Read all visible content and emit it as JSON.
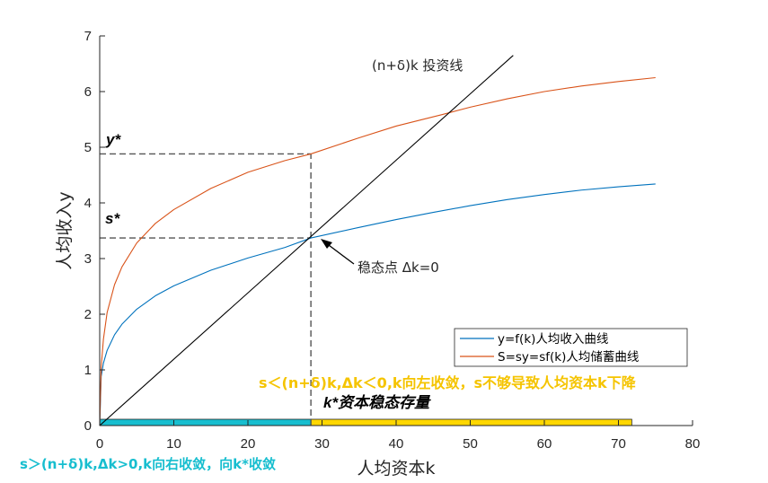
{
  "chart_data": {
    "type": "line",
    "xlabel": "人均资本k",
    "ylabel": "人均收入y",
    "xlim": [
      0,
      80
    ],
    "ylim": [
      0,
      7
    ],
    "xticks": [
      0,
      10,
      20,
      30,
      40,
      50,
      60,
      70,
      80
    ],
    "yticks": [
      0,
      1,
      2,
      3,
      4,
      5,
      6,
      7
    ],
    "grid": false,
    "legend_position": "lower-right",
    "series": [
      {
        "name": "y=f(k)人均收入曲线",
        "color": "#0072bd",
        "x": [
          0,
          0.2,
          0.5,
          1,
          2,
          3,
          5,
          7.5,
          10,
          15,
          20,
          25,
          28.5,
          35,
          40,
          45,
          50,
          55,
          60,
          65,
          70,
          75
        ],
        "y": [
          0,
          0.88,
          1.12,
          1.35,
          1.63,
          1.82,
          2.09,
          2.33,
          2.51,
          2.79,
          3.01,
          3.2,
          3.37,
          3.56,
          3.7,
          3.83,
          3.95,
          4.06,
          4.15,
          4.23,
          4.29,
          4.34
        ]
      },
      {
        "name": "S=sy=sf(k)人均储蓄曲线",
        "color": "#d95319",
        "x": [
          0,
          0.2,
          0.5,
          1,
          2,
          3,
          5,
          7.5,
          10,
          15,
          20,
          25,
          28.5,
          35,
          40,
          46.3,
          50,
          55,
          60,
          65,
          70,
          75
        ],
        "y": [
          0,
          1.05,
          1.55,
          2.03,
          2.53,
          2.85,
          3.28,
          3.63,
          3.88,
          4.26,
          4.55,
          4.76,
          4.88,
          5.17,
          5.38,
          5.59,
          5.72,
          5.87,
          6.0,
          6.1,
          6.18,
          6.25
        ]
      },
      {
        "name": "(n+δ)k 投资线",
        "color": "#000000",
        "x": [
          0,
          55.8
        ],
        "y": [
          0,
          6.65
        ]
      }
    ],
    "reference_lines": [
      {
        "kind": "horizontal",
        "y": 4.88,
        "x_from": 0,
        "x_to": 28.5,
        "style": "dashed"
      },
      {
        "kind": "horizontal",
        "y": 3.37,
        "x_from": 0,
        "x_to": 28.5,
        "style": "dashed"
      },
      {
        "kind": "vertical",
        "x": 28.5,
        "y_from": 0,
        "y_to": 4.88,
        "style": "dashed"
      }
    ],
    "bands": [
      {
        "x_from": 0,
        "x_to": 28.5,
        "color": "#17becf",
        "note": "s＞(n+δ)k,Δk>0,k向右收敛，向k*收敛"
      },
      {
        "x_from": 28.5,
        "x_to": 71.8,
        "color": "#ffd700",
        "note": "s＜(n+δ)k,Δk＜0,k向左收敛，s不够导致人均资本k下降"
      }
    ],
    "annotations": {
      "investment_line_label": "(n+δ)k 投资线",
      "steady_state_label": "稳态点 Δk=0",
      "y_star_label": "y*",
      "s_star_label": "s*",
      "k_star_label": "k*资本稳态存量",
      "yellow_note": "s＜(n+δ)k,Δk＜0,k向左收敛，s不够导致人均资本k下降",
      "cyan_note": "s＞(n+δ)k,Δk>0,k向右收敛，向k*收敛"
    },
    "colors": {
      "income_curve": "#0072bd",
      "saving_curve": "#d95319",
      "investment_line": "#000000",
      "yellow_band": "#ffd700",
      "yellow_text": "#f5c400",
      "cyan_band": "#17becf",
      "cyan_text": "#17becf"
    }
  }
}
